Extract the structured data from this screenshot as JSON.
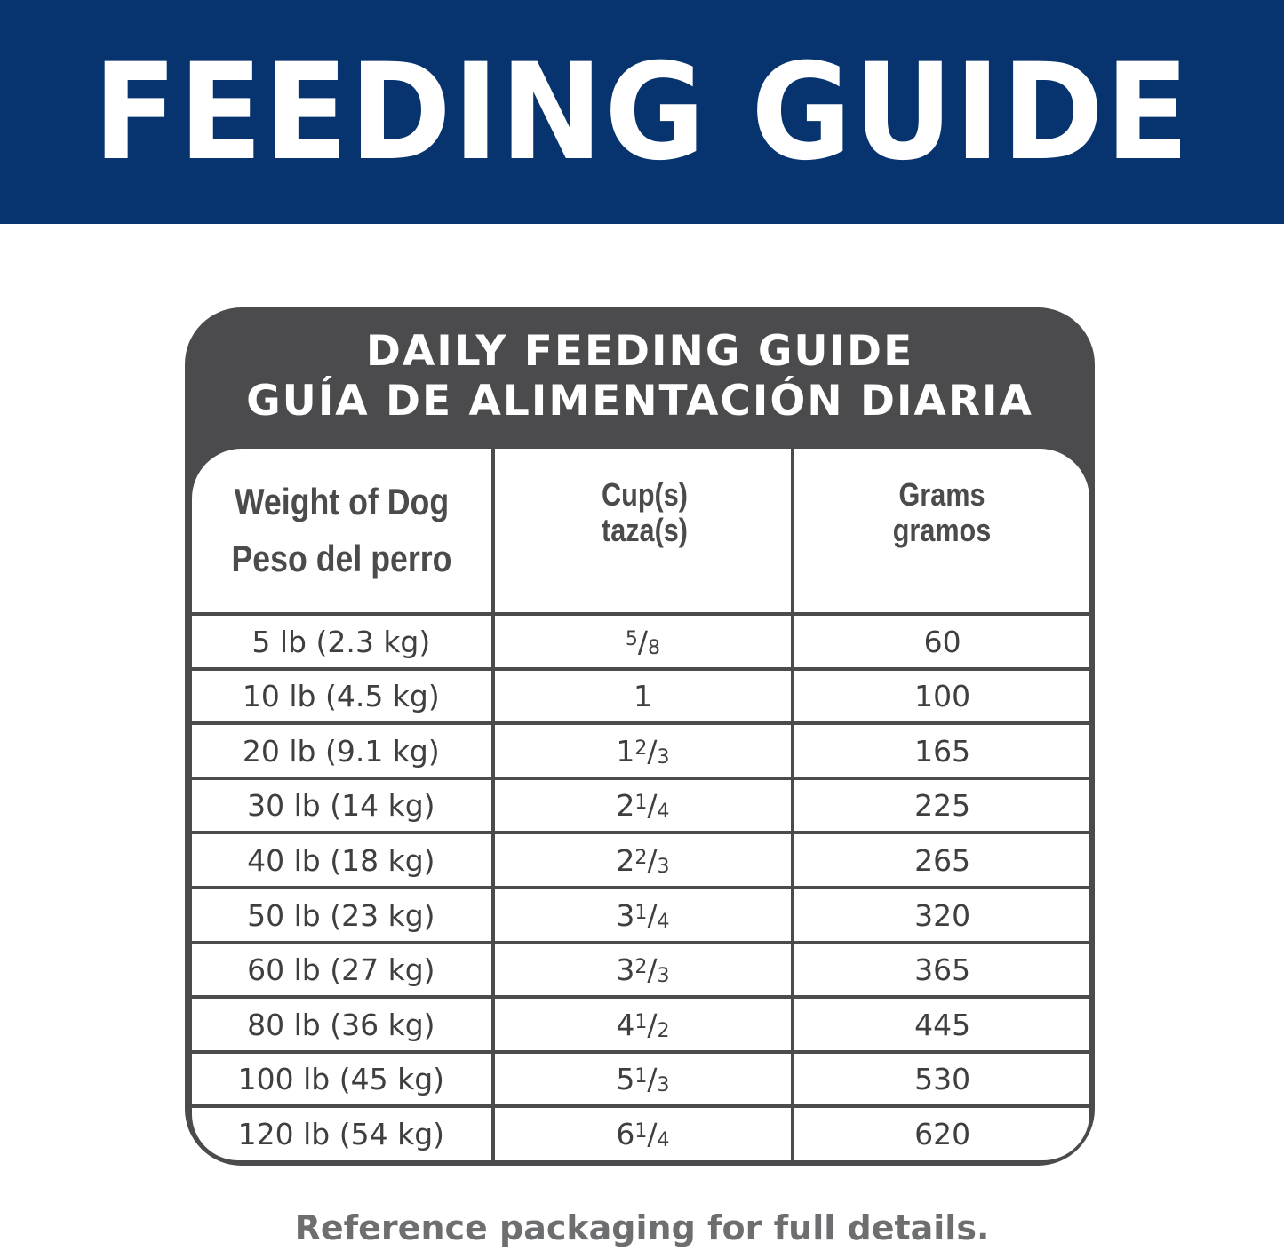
{
  "banner": {
    "title": "FEEDING GUIDE",
    "color": "#07346f"
  },
  "card": {
    "title_en": "DAILY FEEDING GUIDE",
    "title_es": "GUÍA DE ALIMENTACIÓN DIARIA",
    "color": "#4b4b4d"
  },
  "table": {
    "headers": {
      "weight_en": "Weight of Dog",
      "weight_es": "Peso del perro",
      "cups_en": "Cup(s)",
      "cups_es": "taza(s)",
      "grams_en": "Grams",
      "grams_es": "gramos"
    },
    "rows": [
      {
        "weight": "5 lb (2.3 kg)",
        "cups_whole": "",
        "cups_num": "5",
        "cups_den": "8",
        "grams": "60"
      },
      {
        "weight": "10 lb (4.5 kg)",
        "cups_whole": "1",
        "cups_num": "",
        "cups_den": "",
        "grams": "100"
      },
      {
        "weight": "20 lb (9.1 kg)",
        "cups_whole": "1",
        "cups_num": "2",
        "cups_den": "3",
        "grams": "165"
      },
      {
        "weight": "30 lb (14 kg)",
        "cups_whole": "2",
        "cups_num": "1",
        "cups_den": "4",
        "grams": "225"
      },
      {
        "weight": "40 lb (18 kg)",
        "cups_whole": "2",
        "cups_num": "2",
        "cups_den": "3",
        "grams": "265"
      },
      {
        "weight": "50 lb (23 kg)",
        "cups_whole": "3",
        "cups_num": "1",
        "cups_den": "4",
        "grams": "320"
      },
      {
        "weight": "60 lb (27 kg)",
        "cups_whole": "3",
        "cups_num": "2",
        "cups_den": "3",
        "grams": "365"
      },
      {
        "weight": "80 lb (36 kg)",
        "cups_whole": "4",
        "cups_num": "1",
        "cups_den": "2",
        "grams": "445"
      },
      {
        "weight": "100 lb (45 kg)",
        "cups_whole": "5",
        "cups_num": "1",
        "cups_den": "3",
        "grams": "530"
      },
      {
        "weight": "120 lb (54 kg)",
        "cups_whole": "6",
        "cups_num": "1",
        "cups_den": "4",
        "grams": "620"
      }
    ]
  },
  "footer": "Reference packaging for full details."
}
